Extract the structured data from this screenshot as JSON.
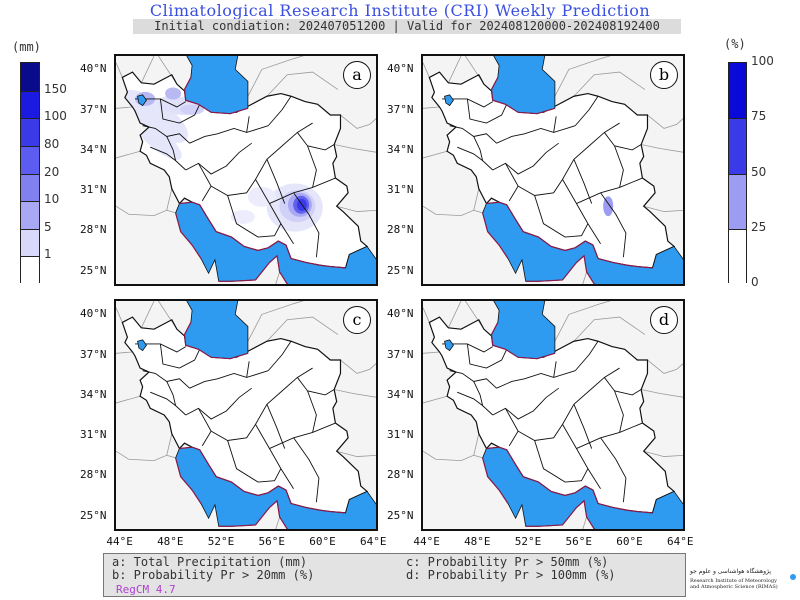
{
  "title": "Climatological Research Institute (CRI) Weekly Prediction",
  "subtitle": "Initial condiation: 202407051200 | Valid for 202408120000-202408192400",
  "left_colorbar": {
    "unit": "(mm)",
    "levels": [
      "150",
      "100",
      "80",
      "20",
      "10",
      "5",
      "1"
    ],
    "colors": [
      "#0a0a8c",
      "#1a1ae0",
      "#3a3ae8",
      "#5c5cf0",
      "#8080f0",
      "#a8a8f5",
      "#d8d8fa",
      "#ffffff"
    ]
  },
  "right_colorbar": {
    "unit": "(%)",
    "levels": [
      "100",
      "75",
      "50",
      "25",
      "0"
    ],
    "colors": [
      "#0a0ad8",
      "#3a3ae8",
      "#9c9cf2",
      "#ffffff"
    ]
  },
  "panels": [
    {
      "label": "a"
    },
    {
      "label": "b"
    },
    {
      "label": "c"
    },
    {
      "label": "d"
    }
  ],
  "lat_ticks": [
    "40°N",
    "37°N",
    "34°N",
    "31°N",
    "28°N",
    "25°N"
  ],
  "lon_ticks": [
    "44°E",
    "48°E",
    "52°E",
    "56°E",
    "60°E",
    "64°E"
  ],
  "legend": {
    "a": "a: Total Precipitation (mm)",
    "b": "b: Probability Pr > 20mm (%)",
    "c": "c: Probability Pr > 50mm (%)",
    "d": "d: Probability Pr > 100mm (%)",
    "model": "RegCM 4.7"
  },
  "logo": {
    "line1": "پژوهشگاه هواشناسی و علوم جو",
    "line2": "Research Institute of Meteorology",
    "line3": "and Atmospheric Science (RIMAS)"
  },
  "colors": {
    "sea": "#2f9bf0",
    "border": "#111111",
    "coast": "#8b1a4a"
  }
}
